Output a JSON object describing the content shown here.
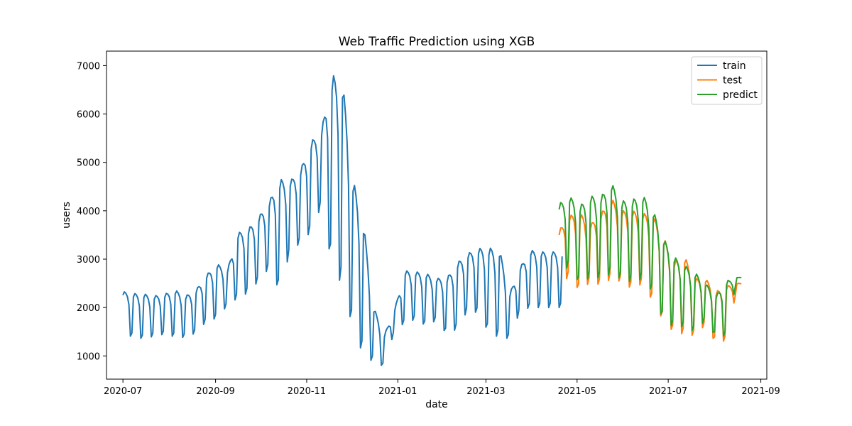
{
  "chart_data": {
    "type": "line",
    "title": "Web Traffic Prediction using XGB",
    "xlabel": "date",
    "ylabel": "users",
    "x_type": "date",
    "xlim": [
      "2020-06-20",
      "2021-09-05"
    ],
    "ylim": [
      520,
      7300
    ],
    "x_ticks": [
      "2020-07",
      "2020-09",
      "2020-11",
      "2021-01",
      "2021-03",
      "2021-05",
      "2021-07",
      "2021-09"
    ],
    "y_ticks": [
      1000,
      2000,
      3000,
      4000,
      5000,
      6000,
      7000
    ],
    "grid": false,
    "legend_position": "top-right",
    "series": [
      {
        "name": "train",
        "color": "#1f77b4",
        "x": [
          "2020-07-01",
          "2020-07-08",
          "2020-07-15",
          "2020-07-22",
          "2020-07-29",
          "2020-08-05",
          "2020-08-12",
          "2020-08-19",
          "2020-08-26",
          "2020-09-02",
          "2020-09-09",
          "2020-09-16",
          "2020-09-23",
          "2020-09-30",
          "2020-10-07",
          "2020-10-14",
          "2020-10-21",
          "2020-10-28",
          "2020-11-04",
          "2020-11-11",
          "2020-11-18",
          "2020-11-25",
          "2020-12-02",
          "2020-12-09",
          "2020-12-16",
          "2020-12-23",
          "2020-12-30",
          "2021-01-06",
          "2021-01-13",
          "2021-01-20",
          "2021-01-27",
          "2021-02-03",
          "2021-02-10",
          "2021-02-17",
          "2021-02-24",
          "2021-03-03",
          "2021-03-10",
          "2021-03-17",
          "2021-03-24",
          "2021-03-31",
          "2021-04-07",
          "2021-04-14",
          "2021-04-18"
        ],
        "peak": [
          2330,
          2290,
          2280,
          2240,
          2280,
          2360,
          2240,
          2370,
          2680,
          2900,
          2780,
          3540,
          3630,
          3880,
          4200,
          4650,
          4620,
          4860,
          5430,
          5680,
          6810,
          6680,
          4650,
          3750,
          2000,
          1440,
          1980,
          2760,
          2740,
          2700,
          2600,
          2620,
          2930,
          3120,
          3220,
          3230,
          3200,
          2300,
          2840,
          3180,
          3150,
          3150,
          3150
        ],
        "trough": [
          1430,
          1400,
          1350,
          1410,
          1450,
          1390,
          1380,
          1480,
          1720,
          1780,
          2050,
          2200,
          2310,
          2560,
          2820,
          2330,
          3190,
          3330,
          3580,
          4120,
          2850,
          2450,
          1560,
          1010,
          870,
          780,
          1560,
          1680,
          1760,
          1620,
          1740,
          1440,
          1570,
          1960,
          1880,
          1480,
          1380,
          1360,
          1950,
          2000,
          2000,
          2000,
          2000
        ]
      },
      {
        "name": "test",
        "color": "#ff7f0e",
        "x": [
          "2021-04-19",
          "2021-04-26",
          "2021-05-03",
          "2021-05-10",
          "2021-05-17",
          "2021-05-24",
          "2021-05-31",
          "2021-06-07",
          "2021-06-14",
          "2021-06-21",
          "2021-06-28",
          "2021-07-05",
          "2021-07-12",
          "2021-07-19",
          "2021-07-26",
          "2021-08-02",
          "2021-08-09",
          "2021-08-16"
        ],
        "peak": [
          3600,
          3900,
          3950,
          3720,
          3950,
          4250,
          4000,
          4000,
          3950,
          3900,
          3450,
          2950,
          3050,
          2600,
          2600,
          2330,
          2450,
          2500
        ],
        "trough": [
          2340,
          2700,
          2300,
          2550,
          2460,
          2600,
          2530,
          2380,
          2500,
          2100,
          1720,
          1480,
          1450,
          1420,
          1650,
          1250,
          1330,
          2400
        ]
      },
      {
        "name": "predict",
        "color": "#2ca02c",
        "x": [
          "2021-04-19",
          "2021-04-26",
          "2021-05-03",
          "2021-05-10",
          "2021-05-17",
          "2021-05-24",
          "2021-05-31",
          "2021-06-07",
          "2021-06-14",
          "2021-06-21",
          "2021-06-28",
          "2021-07-05",
          "2021-07-12",
          "2021-07-19",
          "2021-07-26",
          "2021-08-02",
          "2021-08-09",
          "2021-08-16"
        ],
        "peak": [
          4150,
          4290,
          4110,
          4300,
          4300,
          4570,
          4200,
          4230,
          4320,
          4000,
          3420,
          3050,
          2870,
          2720,
          2500,
          2250,
          2550,
          2620
        ],
        "trough": [
          2600,
          2900,
          2450,
          2650,
          2600,
          2700,
          2580,
          2520,
          2600,
          2300,
          1700,
          1600,
          1600,
          1500,
          1750,
          1380,
          1420,
          2600
        ]
      }
    ]
  }
}
